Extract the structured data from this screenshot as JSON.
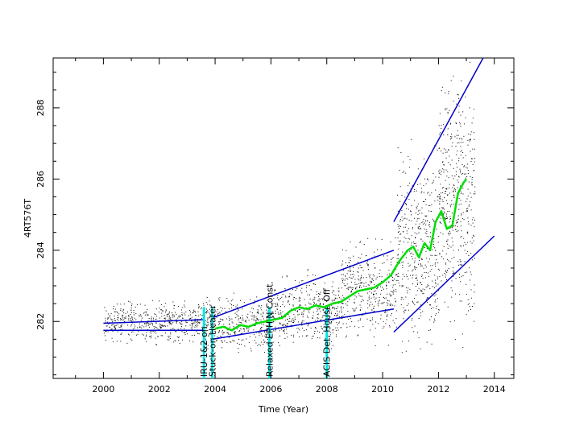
{
  "chart_data": {
    "type": "scatter",
    "title": "",
    "xlabel": "Time (Year)",
    "ylabel": "4RT576T",
    "xlim": [
      1998.2,
      2014.7
    ],
    "ylim": [
      280.4,
      289.4
    ],
    "xticks": [
      2000,
      2002,
      2004,
      2006,
      2008,
      2010,
      2012,
      2014
    ],
    "yticks": [
      282,
      284,
      286,
      288
    ],
    "grid": false,
    "legend": "none",
    "colors": {
      "points": "#000000",
      "trend": "#00dd00",
      "envelope": "#0000cc",
      "events": "#00e5e5"
    },
    "scatter_bands": [
      {
        "x": [
          2000.0,
          2003.5
        ],
        "center": 282.0,
        "spread": 0.25
      },
      {
        "x": [
          2003.5,
          2006.0
        ],
        "center": 281.9,
        "spread": 0.35
      },
      {
        "x": [
          2006.0,
          2008.5
        ],
        "center": 282.3,
        "spread": 0.45
      },
      {
        "x": [
          2008.5,
          2010.5
        ],
        "center": 282.9,
        "spread": 0.6
      },
      {
        "x": [
          2010.5,
          2012.0
        ],
        "center": 284.0,
        "spread": 1.2
      },
      {
        "x": [
          2012.0,
          2013.3
        ],
        "center": 285.4,
        "spread": 1.6
      }
    ],
    "trend": {
      "x": [
        2004.0,
        2004.3,
        2004.6,
        2004.9,
        2005.2,
        2005.5,
        2005.8,
        2006.1,
        2006.4,
        2006.7,
        2007.0,
        2007.3,
        2007.6,
        2007.9,
        2008.2,
        2008.5,
        2008.8,
        2009.1,
        2009.4,
        2009.7,
        2010.0,
        2010.3,
        2010.6,
        2010.9,
        2011.1,
        2011.3,
        2011.5,
        2011.7,
        2011.9,
        2012.1,
        2012.3,
        2012.5,
        2012.7,
        2012.9,
        2013.0
      ],
      "y": [
        281.8,
        281.85,
        281.75,
        281.9,
        281.85,
        281.95,
        282.0,
        282.05,
        282.1,
        282.3,
        282.4,
        282.35,
        282.45,
        282.4,
        282.5,
        282.55,
        282.7,
        282.85,
        282.9,
        282.95,
        283.1,
        283.3,
        283.7,
        284.0,
        284.1,
        283.8,
        284.2,
        284.0,
        284.8,
        285.1,
        284.6,
        284.7,
        285.6,
        285.9,
        286.0
      ]
    },
    "envelope_lines": [
      {
        "x": [
          2000.0,
          2003.6
        ],
        "y": [
          281.95,
          282.05
        ]
      },
      {
        "x": [
          2000.0,
          2003.6
        ],
        "y": [
          281.75,
          281.75
        ]
      },
      {
        "x": [
          2003.9,
          2010.4
        ],
        "y": [
          282.1,
          284.0
        ]
      },
      {
        "x": [
          2003.9,
          2010.4
        ],
        "y": [
          281.5,
          282.35
        ]
      },
      {
        "x": [
          2010.4,
          2013.6
        ],
        "y": [
          284.8,
          289.4
        ]
      },
      {
        "x": [
          2010.4,
          2014.0
        ],
        "y": [
          281.7,
          284.4
        ]
      }
    ],
    "events": [
      {
        "x": 2003.6,
        "label": "IRU-1&2 on",
        "color": "#00e5e5"
      },
      {
        "x": 2003.9,
        "label": "Stuck-on Heater",
        "color": "#00e5e5"
      },
      {
        "x": 2005.95,
        "label": "Relaxed EPHIN Const.",
        "color": "#00e5e5"
      },
      {
        "x": 2008.0,
        "label": "ACIS Det. House Off",
        "color": "#00e5e5"
      }
    ]
  }
}
